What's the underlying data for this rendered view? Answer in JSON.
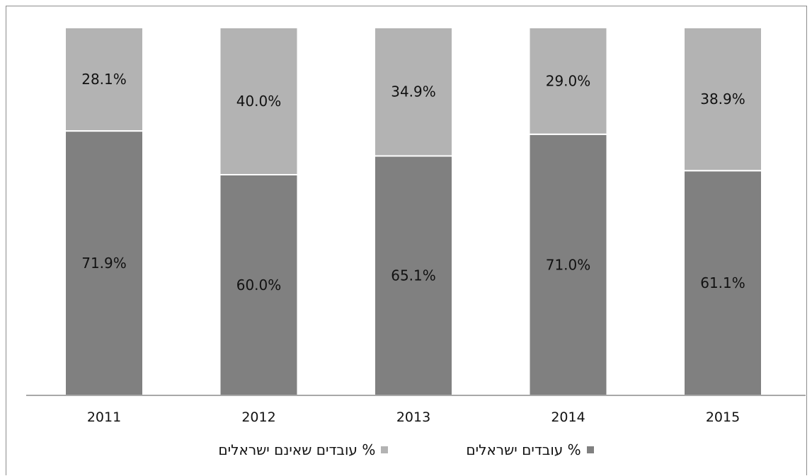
{
  "chart_data": {
    "type": "bar",
    "stacked": true,
    "categories": [
      "2011",
      "2012",
      "2013",
      "2014",
      "2015"
    ],
    "series": [
      {
        "name": "% עובדים ישראלים",
        "values": [
          71.9,
          60.0,
          65.1,
          71.0,
          61.1
        ],
        "labels": [
          "71.9%",
          "60.0%",
          "65.1%",
          "71.0%",
          "61.1%"
        ],
        "color": "#808080"
      },
      {
        "name": "% עובדים שאינם ישראלים",
        "values": [
          28.1,
          40.0,
          34.9,
          29.0,
          38.9
        ],
        "labels": [
          "28.1%",
          "40.0%",
          "34.9%",
          "29.0%",
          "38.9%"
        ],
        "color": "#b3b3b3"
      }
    ],
    "ylim": [
      0,
      100
    ],
    "grid": false,
    "legend_position": "bottom"
  }
}
